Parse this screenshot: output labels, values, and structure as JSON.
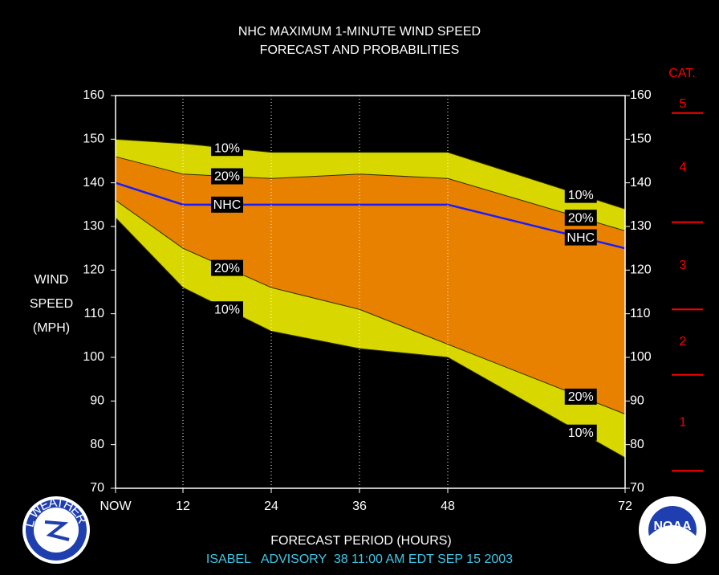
{
  "chart_data": {
    "type": "band-line",
    "title": "NHC MAXIMUM 1-MINUTE WIND SPEED",
    "subtitle": "FORECAST AND PROBABILITIES",
    "y_label": [
      "WIND",
      "SPEED",
      "(MPH)"
    ],
    "x_label": "FORECAST PERIOD (HOURS)",
    "footer": "ISABEL   ADVISORY  38 11:00 AM EDT SEP 15 2003",
    "x": [
      0,
      12,
      24,
      36,
      48,
      72
    ],
    "xlim": [
      0,
      72
    ],
    "xticks": [
      {
        "value": 0,
        "label": "NOW"
      },
      12,
      24,
      36,
      48,
      72
    ],
    "ylim": [
      70,
      160
    ],
    "yticks": [
      70,
      80,
      90,
      100,
      110,
      120,
      130,
      140,
      150,
      160
    ],
    "series": [
      {
        "name": "10%",
        "color": "#303000",
        "values": [
          150,
          149,
          147,
          147,
          147,
          134
        ]
      },
      {
        "name": "20%",
        "color": "#303000",
        "values": [
          146,
          142,
          141,
          142,
          141,
          129
        ]
      },
      {
        "name": "NHC",
        "color": "#1a1aff",
        "values": [
          140,
          135,
          135,
          135,
          135,
          125
        ]
      },
      {
        "name": "20%",
        "color": "#303000",
        "values": [
          136,
          125,
          116,
          111,
          103,
          87
        ]
      },
      {
        "name": "10%",
        "color": "#303000",
        "values": [
          132,
          116,
          106,
          102,
          100,
          77
        ]
      }
    ],
    "outer_fill": "#d8d800",
    "inner_fill": "#e88000",
    "category_scale": {
      "title": "CAT.",
      "color": "#ff0000",
      "labels": [
        "1",
        "2",
        "3",
        "4",
        "5"
      ],
      "thresholds": [
        74,
        96,
        111,
        131,
        156
      ]
    },
    "logos": {
      "left": "NATIONAL WEATHER SERVICE",
      "right": "NOAA"
    }
  }
}
